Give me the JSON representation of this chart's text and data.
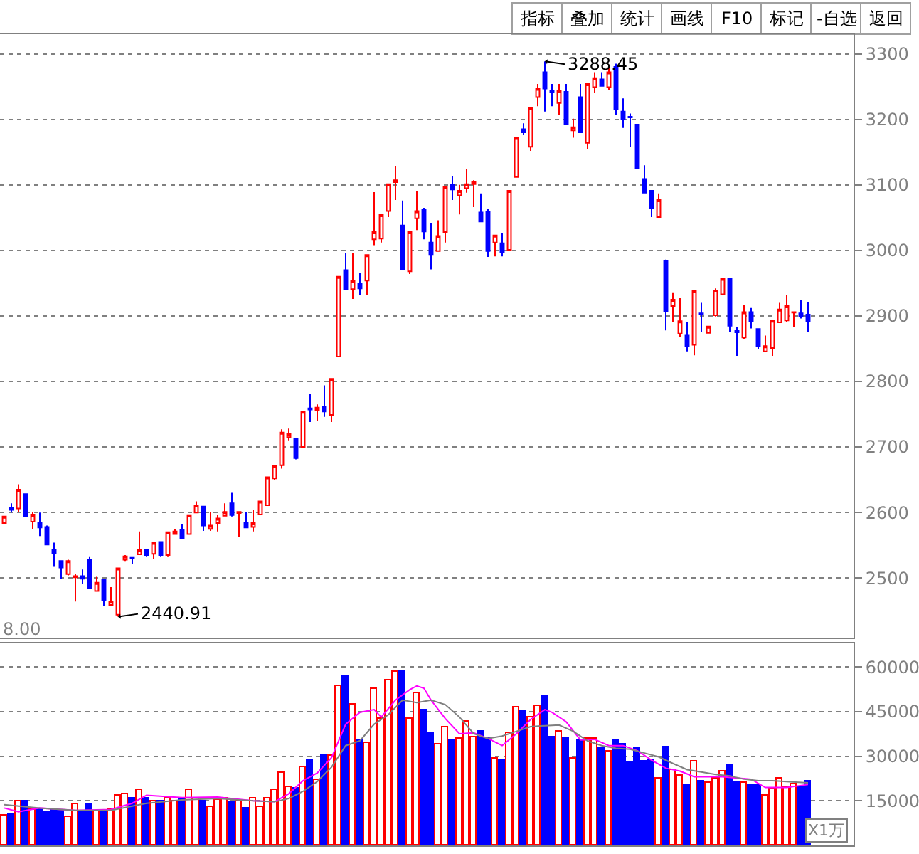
{
  "chart_data": [
    {
      "type": "candlestick",
      "categories": [
        null,
        null,
        null,
        null,
        null,
        null,
        null,
        null,
        null,
        null,
        null,
        null,
        null,
        null,
        null,
        null,
        null,
        null,
        null,
        null,
        null,
        null,
        null,
        null,
        null,
        null,
        null,
        null,
        null,
        null,
        null,
        null,
        null,
        null,
        null,
        null,
        null,
        null,
        null,
        null,
        null,
        null,
        null,
        null,
        null,
        null,
        null,
        null,
        null,
        null,
        null,
        null,
        null,
        null,
        null,
        null,
        null,
        null,
        null,
        null,
        null,
        null,
        null,
        null,
        null,
        null,
        null,
        null,
        null,
        null,
        null,
        null,
        null,
        null,
        null,
        null,
        null,
        null,
        null,
        null,
        null,
        null,
        null,
        null,
        null,
        null,
        null,
        null,
        null,
        null,
        null,
        null,
        null,
        null,
        null,
        null,
        null,
        null,
        null,
        null,
        null,
        null,
        null,
        null,
        null,
        null,
        null,
        null,
        null,
        null,
        null,
        null,
        null,
        null
      ],
      "ohlc": [
        [
          2584,
          2595,
          2582,
          2594
        ],
        [
          2607,
          2614,
          2600,
          2604
        ],
        [
          2606,
          2643,
          2601,
          2635
        ],
        [
          2628,
          2628,
          2594,
          2594
        ],
        [
          2586,
          2601,
          2575,
          2597
        ],
        [
          2584,
          2600,
          2564,
          2577
        ],
        [
          2578,
          2580,
          2550,
          2551
        ],
        [
          2543,
          2554,
          2517,
          2538
        ],
        [
          2526,
          2527,
          2499,
          2516
        ],
        [
          2506,
          2528,
          2504,
          2526
        ],
        [
          2501,
          2506,
          2464,
          2503
        ],
        [
          2503,
          2513,
          2491,
          2499
        ],
        [
          2528,
          2533,
          2483,
          2484
        ],
        [
          2480,
          2502,
          2480,
          2493
        ],
        [
          2497,
          2497,
          2457,
          2466
        ],
        [
          2459,
          2486,
          2459,
          2464
        ],
        [
          2444,
          2515,
          2440.91,
          2515
        ],
        [
          2528,
          2535,
          2526,
          2533
        ],
        [
          2532,
          2532,
          2521,
          2530
        ],
        [
          2536,
          2571,
          2535,
          2543
        ],
        [
          2543,
          2543,
          2533,
          2535
        ],
        [
          2537,
          2554,
          2529,
          2554
        ],
        [
          2555,
          2555,
          2533,
          2535
        ],
        [
          2535,
          2570,
          2533,
          2570
        ],
        [
          2567,
          2575,
          2567,
          2571
        ],
        [
          2573,
          2582,
          2560,
          2560
        ],
        [
          2567,
          2597,
          2567,
          2596
        ],
        [
          2600,
          2617,
          2600,
          2611
        ],
        [
          2609,
          2609,
          2572,
          2580
        ],
        [
          2575,
          2601,
          2572,
          2580
        ],
        [
          2584,
          2596,
          2571,
          2591
        ],
        [
          2595,
          2614,
          2595,
          2601
        ],
        [
          2614,
          2630,
          2594,
          2596
        ],
        [
          2599,
          2601,
          2562,
          2601
        ],
        [
          2584,
          2601,
          2577,
          2577
        ],
        [
          2578,
          2604,
          2571,
          2584
        ],
        [
          2597,
          2617,
          2596,
          2617
        ],
        [
          2611,
          2654,
          2611,
          2654
        ],
        [
          2652,
          2671,
          2650,
          2671
        ],
        [
          2672,
          2727,
          2667,
          2722
        ],
        [
          2715,
          2728,
          2710,
          2720
        ],
        [
          2712,
          2714,
          2681,
          2683
        ],
        [
          2700,
          2754,
          2700,
          2754
        ],
        [
          2759,
          2781,
          2738,
          2757
        ],
        [
          2756,
          2765,
          2740,
          2760
        ],
        [
          2761,
          2794,
          2746,
          2754
        ],
        [
          2749,
          2804,
          2738,
          2804
        ],
        [
          2838,
          2960,
          2838,
          2960
        ],
        [
          2970,
          2996,
          2939,
          2941
        ],
        [
          2941,
          2996,
          2926,
          2954
        ],
        [
          2950,
          2965,
          2932,
          2942
        ],
        [
          2954,
          2993,
          2932,
          2993
        ],
        [
          3017,
          3089,
          3008,
          3028
        ],
        [
          3018,
          3054,
          3012,
          3054
        ],
        [
          3060,
          3101,
          3051,
          3101
        ],
        [
          3104,
          3129,
          3077,
          3107
        ],
        [
          3038,
          3076,
          2971,
          2971
        ],
        [
          2968,
          3028,
          2964,
          3028
        ],
        [
          3049,
          3091,
          3031,
          3060
        ],
        [
          3062,
          3065,
          3017,
          3029
        ],
        [
          3012,
          3041,
          2971,
          2993
        ],
        [
          2999,
          3046,
          2999,
          3022
        ],
        [
          3028,
          3097,
          3012,
          3097
        ],
        [
          3100,
          3113,
          3077,
          3093
        ],
        [
          3084,
          3100,
          3055,
          3091
        ],
        [
          3095,
          3124,
          3088,
          3101
        ],
        [
          3101,
          3107,
          3066,
          3105
        ],
        [
          3058,
          3087,
          3044,
          3044
        ],
        [
          3059,
          3064,
          2990,
          2999
        ],
        [
          3012,
          3023,
          2991,
          3023
        ],
        [
          3011,
          3026,
          2991,
          2997
        ],
        [
          3001,
          3091,
          3001,
          3091
        ],
        [
          3112,
          3172,
          3112,
          3172
        ],
        [
          3185,
          3194,
          3176,
          3180
        ],
        [
          3158,
          3217,
          3152,
          3217
        ],
        [
          3234,
          3254,
          3220,
          3247
        ],
        [
          3272,
          3288.45,
          3212,
          3247
        ],
        [
          3243,
          3254,
          3220,
          3241
        ],
        [
          3225,
          3254,
          3207,
          3243
        ],
        [
          3242,
          3254,
          3193,
          3193
        ],
        [
          3183,
          3201,
          3172,
          3188
        ],
        [
          3234,
          3254,
          3180,
          3180
        ],
        [
          3164,
          3254,
          3154,
          3254
        ],
        [
          3249,
          3272,
          3241,
          3263
        ],
        [
          3261,
          3272,
          3251,
          3251
        ],
        [
          3249,
          3278,
          3245,
          3272
        ],
        [
          3280,
          3285,
          3207,
          3216
        ],
        [
          3212,
          3232,
          3187,
          3200
        ],
        [
          3204,
          3209,
          3158,
          3203
        ],
        [
          3192,
          3193,
          3125,
          3125
        ],
        [
          3109,
          3130,
          3088,
          3088
        ],
        [
          3091,
          3091,
          3051,
          3064
        ],
        [
          3051,
          3087,
          3051,
          3077
        ],
        [
          2984,
          2986,
          2878,
          2907
        ],
        [
          2915,
          2935,
          2890,
          2925
        ],
        [
          2873,
          2927,
          2868,
          2892
        ],
        [
          2870,
          2890,
          2846,
          2854
        ],
        [
          2856,
          2940,
          2840,
          2938
        ],
        [
          2904,
          2920,
          2875,
          2903
        ],
        [
          2874,
          2884,
          2874,
          2884
        ],
        [
          2901,
          2942,
          2899,
          2939
        ],
        [
          2933,
          2957,
          2933,
          2957
        ],
        [
          2957,
          2957,
          2875,
          2885
        ],
        [
          2878,
          2883,
          2839,
          2875
        ],
        [
          2867,
          2917,
          2865,
          2906
        ],
        [
          2906,
          2912,
          2881,
          2892
        ],
        [
          2880,
          2880,
          2850,
          2854
        ],
        [
          2846,
          2870,
          2846,
          2854
        ],
        [
          2851,
          2893,
          2839,
          2893
        ],
        [
          2890,
          2920,
          2889,
          2910
        ],
        [
          2893,
          2932,
          2891,
          2915
        ],
        [
          2905,
          2906,
          2883,
          2906
        ],
        [
          2904,
          2924,
          2896,
          2899
        ],
        [
          2902,
          2921,
          2876,
          2892
        ]
      ],
      "colors": [
        "#ff0000",
        "#0000ff",
        "#ff0000",
        "#0000ff",
        "#ff0000",
        "#0000ff",
        "#0000ff",
        "#0000ff",
        "#0000ff",
        "#ff0000",
        "#ff0000",
        "#0000ff",
        "#0000ff",
        "#ff0000",
        "#0000ff",
        "#ff0000",
        "#ff0000",
        "#ff0000",
        "#0000ff",
        "#ff0000",
        "#0000ff",
        "#ff0000",
        "#0000ff",
        "#ff0000",
        "#ff0000",
        "#0000ff",
        "#ff0000",
        "#ff0000",
        "#0000ff",
        "#ff0000",
        "#ff0000",
        "#ff0000",
        "#0000ff",
        "#ff0000",
        "#0000ff",
        "#ff0000",
        "#ff0000",
        "#ff0000",
        "#ff0000",
        "#ff0000",
        "#ff0000",
        "#0000ff",
        "#ff0000",
        "#0000ff",
        "#ff0000",
        "#0000ff",
        "#ff0000",
        "#ff0000",
        "#0000ff",
        "#ff0000",
        "#0000ff",
        "#ff0000",
        "#ff0000",
        "#ff0000",
        "#ff0000",
        "#ff0000",
        "#0000ff",
        "#ff0000",
        "#ff0000",
        "#0000ff",
        "#0000ff",
        "#ff0000",
        "#ff0000",
        "#0000ff",
        "#ff0000",
        "#ff0000",
        "#ff0000",
        "#0000ff",
        "#0000ff",
        "#ff0000",
        "#0000ff",
        "#ff0000",
        "#ff0000",
        "#0000ff",
        "#ff0000",
        "#ff0000",
        "#0000ff",
        "#0000ff",
        "#ff0000",
        "#0000ff",
        "#ff0000",
        "#0000ff",
        "#ff0000",
        "#ff0000",
        "#0000ff",
        "#ff0000",
        "#0000ff",
        "#0000ff",
        "#0000ff",
        "#0000ff",
        "#0000ff",
        "#0000ff",
        "#ff0000",
        "#0000ff",
        "#ff0000",
        "#ff0000",
        "#0000ff",
        "#ff0000",
        "#0000ff",
        "#ff0000",
        "#ff0000",
        "#ff0000",
        "#0000ff",
        "#0000ff",
        "#ff0000",
        "#0000ff",
        "#0000ff",
        "#ff0000",
        "#ff0000",
        "#ff0000",
        "#ff0000",
        "#ff0000",
        "#0000ff",
        "#0000ff"
      ],
      "ylim": [
        2409,
        3330
      ],
      "yticks": [
        2500,
        2600,
        2700,
        2800,
        2900,
        3000,
        3100,
        3200,
        3300
      ],
      "grid": "y",
      "tick_labels": "y",
      "annotations": [
        "指标",
        "叠加",
        "统计",
        "画线",
        "F10",
        "标记",
        "-自选",
        "返回",
        "3288.45",
        "2440.91"
      ]
    },
    {
      "type": "bar",
      "categories": [
        null,
        null,
        null,
        null,
        null,
        null,
        null,
        null,
        null,
        null,
        null,
        null,
        null,
        null,
        null,
        null,
        null,
        null,
        null,
        null,
        null,
        null,
        null,
        null,
        null,
        null,
        null,
        null,
        null,
        null,
        null,
        null,
        null,
        null,
        null,
        null,
        null,
        null,
        null,
        null,
        null,
        null,
        null,
        null,
        null,
        null,
        null,
        null,
        null,
        null,
        null,
        null,
        null,
        null,
        null,
        null,
        null,
        null,
        null,
        null,
        null,
        null,
        null,
        null,
        null,
        null,
        null,
        null,
        null,
        null,
        null,
        null,
        null,
        null,
        null,
        null,
        null,
        null,
        null,
        null,
        null,
        null,
        null,
        null,
        null,
        null,
        null,
        null,
        null,
        null,
        null,
        null,
        null,
        null,
        null,
        null,
        null,
        null,
        null,
        null,
        null,
        null,
        null,
        null,
        null,
        null,
        null,
        null,
        null,
        null,
        null,
        null,
        null,
        null
      ],
      "series": [
        {
          "type": "bar",
          "colors": [
            "#ff0000",
            "#0000ff",
            "#ff0000",
            "#0000ff",
            "#ff0000",
            "#0000ff",
            "#0000ff",
            "#0000ff",
            "#0000ff",
            "#ff0000",
            "#ff0000",
            "#0000ff",
            "#0000ff",
            "#ff0000",
            "#0000ff",
            "#ff0000",
            "#ff0000",
            "#ff0000",
            "#0000ff",
            "#ff0000",
            "#0000ff",
            "#ff0000",
            "#0000ff",
            "#ff0000",
            "#ff0000",
            "#0000ff",
            "#ff0000",
            "#ff0000",
            "#0000ff",
            "#ff0000",
            "#ff0000",
            "#ff0000",
            "#0000ff",
            "#ff0000",
            "#0000ff",
            "#ff0000",
            "#ff0000",
            "#ff0000",
            "#ff0000",
            "#ff0000",
            "#ff0000",
            "#0000ff",
            "#ff0000",
            "#0000ff",
            "#ff0000",
            "#0000ff",
            "#ff0000",
            "#ff0000",
            "#0000ff",
            "#ff0000",
            "#0000ff",
            "#ff0000",
            "#ff0000",
            "#ff0000",
            "#ff0000",
            "#ff0000",
            "#0000ff",
            "#ff0000",
            "#ff0000",
            "#0000ff",
            "#0000ff",
            "#ff0000",
            "#ff0000",
            "#0000ff",
            "#ff0000",
            "#ff0000",
            "#ff0000",
            "#0000ff",
            "#0000ff",
            "#ff0000",
            "#0000ff",
            "#ff0000",
            "#ff0000",
            "#0000ff",
            "#ff0000",
            "#ff0000",
            "#0000ff",
            "#0000ff",
            "#ff0000",
            "#0000ff",
            "#ff0000",
            "#0000ff",
            "#ff0000",
            "#ff0000",
            "#0000ff",
            "#ff0000",
            "#0000ff",
            "#0000ff",
            "#0000ff",
            "#0000ff",
            "#0000ff",
            "#0000ff",
            "#ff0000",
            "#0000ff",
            "#ff0000",
            "#ff0000",
            "#0000ff",
            "#ff0000",
            "#0000ff",
            "#ff0000",
            "#ff0000",
            "#ff0000",
            "#0000ff",
            "#0000ff",
            "#ff0000",
            "#0000ff",
            "#0000ff",
            "#ff0000",
            "#ff0000",
            "#ff0000",
            "#ff0000",
            "#ff0000",
            "#0000ff",
            "#0000ff"
          ],
          "values": [
            10200,
            10500,
            15000,
            14700,
            11800,
            11800,
            10800,
            11800,
            11500,
            9800,
            14000,
            10800,
            13700,
            11500,
            10800,
            12100,
            16900,
            17400,
            15700,
            18900,
            16000,
            15000,
            15000,
            15700,
            15000,
            15700,
            18900,
            16000,
            15000,
            13100,
            15300,
            16000,
            14400,
            15000,
            12400,
            15700,
            13100,
            15700,
            18600,
            24400,
            19500,
            19200,
            26300,
            28700,
            21900,
            30200,
            30300,
            53400,
            56900,
            47600,
            35200,
            34700,
            52900,
            42700,
            55700,
            58600,
            58200,
            42700,
            51300,
            45700,
            37600,
            34000,
            39800,
            35200,
            36000,
            41500,
            36500,
            38400,
            35700,
            29200,
            28700,
            37900,
            46500,
            45200,
            43200,
            46900,
            50500,
            36500,
            38200,
            35700,
            29200,
            35200,
            35700,
            35700,
            32700,
            31600,
            35500,
            34000,
            27900,
            32700,
            28400,
            28700,
            22600,
            33100,
            25500,
            23600,
            20200,
            28200,
            21500,
            21100,
            22700,
            24700,
            26800,
            21100,
            21100,
            20200,
            20200,
            16600,
            19000,
            22300,
            19800,
            20700,
            19800,
            21500
          ]
        },
        {
          "type": "line",
          "color": "#ff00ff",
          "values": [
            12600,
            null,
            11300,
            null,
            null,
            12600,
            null,
            null,
            null,
            null,
            11800,
            null,
            null,
            null,
            null,
            12100,
            null,
            null,
            14200,
            null,
            16900,
            null,
            null,
            null,
            null,
            16100,
            null,
            null,
            null,
            null,
            16300,
            null,
            null,
            null,
            null,
            15000,
            null,
            null,
            14700,
            null,
            17400,
            null,
            21800,
            null,
            24400,
            null,
            29500,
            null,
            40800,
            null,
            44800,
            null,
            45700,
            43200,
            null,
            48900,
            null,
            52400,
            53700,
            52900,
            48900,
            null,
            42700,
            null,
            37600,
            null,
            37900,
            null,
            36000,
            null,
            33600,
            null,
            37600,
            null,
            42400,
            null,
            45700,
            44800,
            null,
            41600,
            null,
            35500,
            null,
            35700,
            null,
            33600,
            null,
            33600,
            null,
            31900,
            null,
            28700,
            null,
            26000,
            null,
            25000,
            null,
            23100,
            null,
            23100,
            null,
            23100,
            null,
            22700,
            null,
            22300,
            null,
            19500,
            null,
            null,
            19500,
            null,
            null,
            20500
          ]
        },
        {
          "type": "line",
          "color": "#808080",
          "values": [
            13700,
            null,
            null,
            null,
            null,
            12600,
            null,
            null,
            null,
            null,
            11800,
            null,
            null,
            null,
            null,
            11800,
            null,
            null,
            null,
            null,
            14200,
            null,
            null,
            null,
            null,
            15300,
            null,
            null,
            null,
            null,
            15800,
            null,
            null,
            null,
            null,
            15000,
            null,
            null,
            14700,
            null,
            15800,
            null,
            18200,
            null,
            21500,
            null,
            26300,
            null,
            33600,
            null,
            35200,
            null,
            40800,
            null,
            44000,
            null,
            48900,
            null,
            48100,
            null,
            48900,
            null,
            47400,
            null,
            43200,
            null,
            37600,
            null,
            36000,
            null,
            36800,
            null,
            38400,
            null,
            40000,
            null,
            40300,
            null,
            40500,
            null,
            38400,
            null,
            35200,
            null,
            33600,
            null,
            32700,
            null,
            32400,
            null,
            31100,
            null,
            29800,
            null,
            27600,
            null,
            25500,
            null,
            24700,
            null,
            23900,
            null,
            23400,
            null,
            22300,
            null,
            21800,
            null,
            21800,
            null,
            21500,
            null,
            null,
            21100
          ]
        }
      ],
      "ylim": [
        0,
        68000
      ],
      "yticks": [
        15000,
        30000,
        45000,
        60000
      ],
      "grid": "y",
      "tick_labels": "y",
      "annotations": [
        "8.00",
        "X1万"
      ]
    }
  ]
}
